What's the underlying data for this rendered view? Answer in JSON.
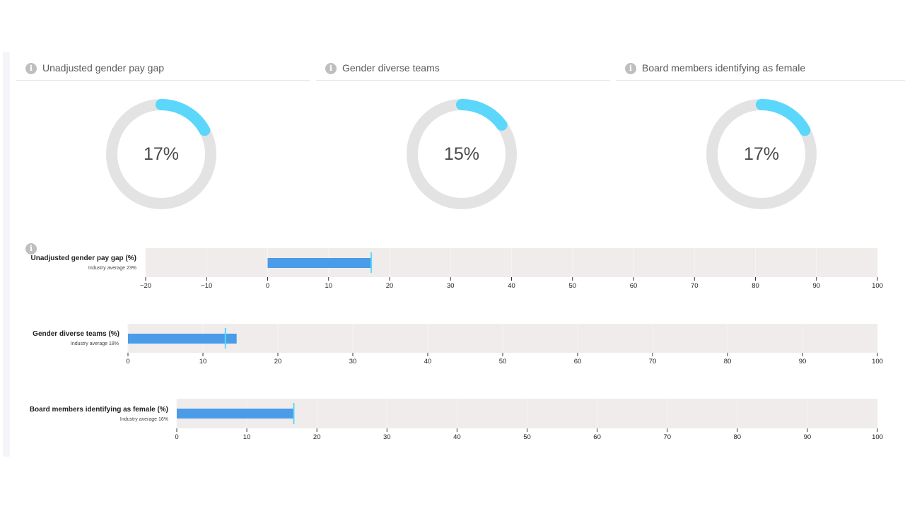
{
  "colors": {
    "donut_track": "#e3e3e3",
    "donut_fill": "#5ad7fb",
    "bullet_bg": "#f0ecec",
    "bullet_bar": "#4a9be8",
    "bullet_marker": "#5ad7fb"
  },
  "icons": {
    "info": "info-icon"
  },
  "info_glyph": "i",
  "cards": [
    {
      "title": "Unadjusted gender pay gap",
      "value": 17,
      "label": "17%"
    },
    {
      "title": "Gender diverse teams",
      "value": 15,
      "label": "15%"
    },
    {
      "title": "Board members identifying as female",
      "value": 17,
      "label": "17%"
    }
  ],
  "chart_data": [
    {
      "type": "bullet",
      "label": "Unadjusted gender pay gap (%)",
      "sublabel": "Industry average 23%",
      "value": 17,
      "marker": 17,
      "xlim": [
        -20,
        100
      ],
      "ticks": [
        -20,
        -10,
        0,
        10,
        20,
        30,
        40,
        50,
        60,
        70,
        80,
        90,
        100
      ],
      "tick_labels": [
        "−20",
        "−10",
        "0",
        "10",
        "20",
        "30",
        "40",
        "50",
        "60",
        "70",
        "80",
        "90",
        "100"
      ]
    },
    {
      "type": "bullet",
      "label": "Gender diverse teams (%)",
      "sublabel": "Industry average 18%",
      "value": 14.5,
      "marker": 13,
      "xlim": [
        0,
        100
      ],
      "ticks": [
        0,
        10,
        20,
        30,
        40,
        50,
        60,
        70,
        80,
        90,
        100
      ],
      "tick_labels": [
        "0",
        "10",
        "20",
        "30",
        "40",
        "50",
        "60",
        "70",
        "80",
        "90",
        "100"
      ]
    },
    {
      "type": "bullet",
      "label": "Board members identifying as female (%)",
      "sublabel": "Industry average 16%",
      "value": 16.7,
      "marker": 16.7,
      "xlim": [
        0,
        100
      ],
      "ticks": [
        0,
        10,
        20,
        30,
        40,
        50,
        60,
        70,
        80,
        90,
        100
      ],
      "tick_labels": [
        "0",
        "10",
        "20",
        "30",
        "40",
        "50",
        "60",
        "70",
        "80",
        "90",
        "100"
      ]
    }
  ]
}
